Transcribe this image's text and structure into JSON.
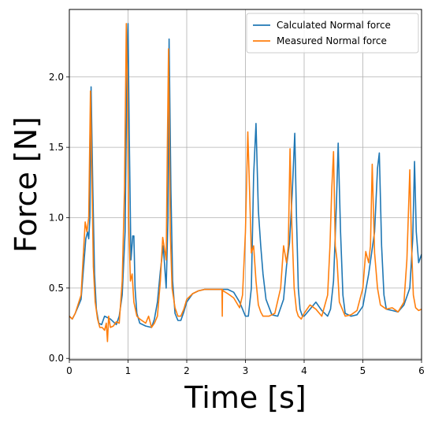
{
  "chart_data": {
    "type": "line",
    "title": "",
    "xlabel": "Time [s]",
    "ylabel": "Force [N]",
    "xlim": [
      0,
      6
    ],
    "ylim": [
      -0.01,
      2.48
    ],
    "xticks": [
      0,
      1,
      2,
      3,
      4,
      5,
      6
    ],
    "xtick_labels": [
      "0",
      "1",
      "2",
      "3",
      "4",
      "5",
      "6"
    ],
    "yticks": [
      0.0,
      0.5,
      1.0,
      1.5,
      2.0
    ],
    "ytick_labels": [
      "0.0",
      "0.5",
      "1.0",
      "1.5",
      "2.0"
    ],
    "grid": true,
    "legend_position": "top-right",
    "series": [
      {
        "name": "Calculated Normal force",
        "color": "#1f77b4",
        "x": [
          0,
          0.05,
          0.1,
          0.2,
          0.28,
          0.31,
          0.33,
          0.35,
          0.37,
          0.4,
          0.43,
          0.46,
          0.5,
          0.55,
          0.6,
          0.7,
          0.8,
          0.85,
          0.9,
          0.95,
          0.98,
          1.0,
          1.02,
          1.05,
          1.08,
          1.1,
          1.12,
          1.15,
          1.2,
          1.3,
          1.4,
          1.45,
          1.5,
          1.55,
          1.6,
          1.65,
          1.68,
          1.7,
          1.73,
          1.76,
          1.8,
          1.85,
          1.9,
          1.95,
          2.0,
          2.1,
          2.2,
          2.3,
          2.5,
          2.7,
          2.8,
          2.9,
          3.0,
          3.05,
          3.1,
          3.14,
          3.18,
          3.22,
          3.26,
          3.3,
          3.35,
          3.45,
          3.55,
          3.65,
          3.7,
          3.75,
          3.8,
          3.84,
          3.87,
          3.9,
          3.93,
          3.97,
          4.0,
          4.1,
          4.2,
          4.3,
          4.4,
          4.45,
          4.5,
          4.55,
          4.58,
          4.62,
          4.66,
          4.7,
          4.8,
          4.9,
          5.0,
          5.1,
          5.2,
          5.25,
          5.28,
          5.32,
          5.36,
          5.4,
          5.5,
          5.6,
          5.7,
          5.8,
          5.85,
          5.88,
          5.91,
          5.95,
          6.0
        ],
        "y": [
          0.3,
          0.28,
          0.32,
          0.42,
          0.85,
          0.9,
          0.85,
          1.0,
          1.93,
          1.2,
          0.6,
          0.35,
          0.25,
          0.24,
          0.3,
          0.28,
          0.24,
          0.3,
          0.45,
          0.9,
          2.0,
          2.38,
          1.6,
          0.7,
          0.87,
          0.87,
          0.5,
          0.32,
          0.25,
          0.23,
          0.22,
          0.28,
          0.4,
          0.62,
          0.8,
          0.5,
          1.0,
          2.27,
          1.2,
          0.55,
          0.32,
          0.27,
          0.27,
          0.33,
          0.4,
          0.46,
          0.48,
          0.49,
          0.49,
          0.49,
          0.47,
          0.4,
          0.3,
          0.3,
          0.5,
          1.3,
          1.67,
          1.05,
          0.8,
          0.6,
          0.42,
          0.31,
          0.3,
          0.42,
          0.66,
          0.82,
          1.2,
          1.6,
          1.0,
          0.5,
          0.35,
          0.3,
          0.3,
          0.35,
          0.4,
          0.34,
          0.3,
          0.35,
          0.55,
          1.1,
          1.53,
          0.9,
          0.45,
          0.32,
          0.3,
          0.31,
          0.37,
          0.6,
          0.9,
          1.35,
          1.46,
          0.8,
          0.45,
          0.35,
          0.34,
          0.33,
          0.38,
          0.5,
          0.85,
          1.4,
          0.9,
          0.68,
          0.74
        ]
      },
      {
        "name": "Measured Normal force",
        "color": "#ff7f0e",
        "x": [
          0,
          0.05,
          0.1,
          0.2,
          0.27,
          0.3,
          0.33,
          0.36,
          0.38,
          0.41,
          0.44,
          0.48,
          0.52,
          0.56,
          0.6,
          0.63,
          0.65,
          0.67,
          0.7,
          0.75,
          0.8,
          0.85,
          0.9,
          0.94,
          0.97,
          0.99,
          1.01,
          1.04,
          1.07,
          1.1,
          1.15,
          1.2,
          1.3,
          1.35,
          1.4,
          1.45,
          1.5,
          1.55,
          1.59,
          1.62,
          1.65,
          1.67,
          1.69,
          1.72,
          1.75,
          1.8,
          1.85,
          1.9,
          1.95,
          2.0,
          2.1,
          2.2,
          2.3,
          2.5,
          2.6,
          2.605,
          2.61,
          2.62,
          2.7,
          2.8,
          2.9,
          2.95,
          3.0,
          3.04,
          3.07,
          3.1,
          3.14,
          3.18,
          3.22,
          3.26,
          3.3,
          3.4,
          3.5,
          3.6,
          3.65,
          3.7,
          3.73,
          3.76,
          3.79,
          3.83,
          3.87,
          3.9,
          3.95,
          4.0,
          4.1,
          4.2,
          4.3,
          4.4,
          4.44,
          4.47,
          4.5,
          4.53,
          4.56,
          4.6,
          4.7,
          4.8,
          4.9,
          5.0,
          5.05,
          5.1,
          5.13,
          5.16,
          5.2,
          5.25,
          5.3,
          5.4,
          5.5,
          5.6,
          5.7,
          5.75,
          5.8,
          5.83,
          5.86,
          5.9,
          5.95,
          6.0
        ],
        "y": [
          0.3,
          0.28,
          0.32,
          0.45,
          0.97,
          0.9,
          1.0,
          1.9,
          1.4,
          0.65,
          0.4,
          0.28,
          0.22,
          0.22,
          0.2,
          0.25,
          0.12,
          0.3,
          0.22,
          0.23,
          0.26,
          0.25,
          0.55,
          1.2,
          2.38,
          1.9,
          1.0,
          0.55,
          0.6,
          0.4,
          0.3,
          0.28,
          0.25,
          0.3,
          0.22,
          0.25,
          0.3,
          0.55,
          0.86,
          0.78,
          0.7,
          1.5,
          2.2,
          0.9,
          0.5,
          0.36,
          0.3,
          0.3,
          0.35,
          0.42,
          0.46,
          0.48,
          0.49,
          0.49,
          0.49,
          0.3,
          0.49,
          0.48,
          0.46,
          0.43,
          0.36,
          0.45,
          0.9,
          1.61,
          1.2,
          0.75,
          0.8,
          0.55,
          0.38,
          0.33,
          0.3,
          0.3,
          0.32,
          0.5,
          0.8,
          0.68,
          0.8,
          1.49,
          0.95,
          0.5,
          0.34,
          0.3,
          0.28,
          0.32,
          0.38,
          0.35,
          0.3,
          0.45,
          0.8,
          1.2,
          1.47,
          0.8,
          0.7,
          0.4,
          0.3,
          0.31,
          0.34,
          0.5,
          0.76,
          0.68,
          0.8,
          1.38,
          0.75,
          0.5,
          0.38,
          0.35,
          0.36,
          0.33,
          0.4,
          0.7,
          1.34,
          0.8,
          0.45,
          0.36,
          0.34,
          0.35
        ]
      }
    ]
  }
}
